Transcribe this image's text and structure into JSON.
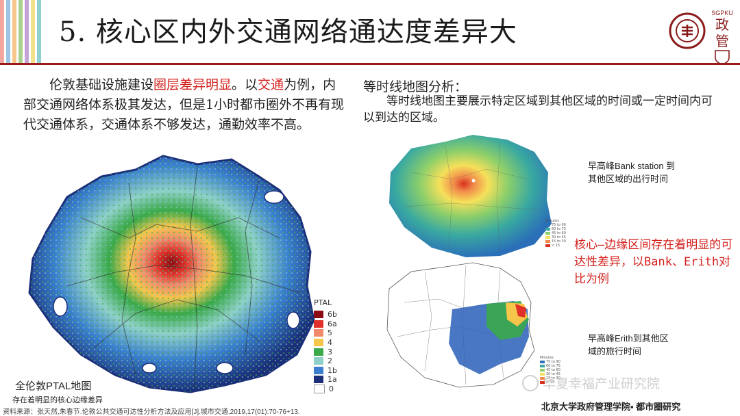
{
  "header": {
    "title": "5. 核心区内外交通网络通达度差异大",
    "stripe_colors": [
      "#f4a7a0",
      "#fff",
      "#9dc3e6",
      "#fff",
      "#f6c68c",
      "#fff",
      "#a9d18e",
      "#fff",
      "#c5a3d6",
      "#fff",
      "#f2e08a",
      "#fff",
      "#8fcfcf"
    ],
    "accent": "#9b1b1b",
    "logo_right_top": "SGPKU",
    "logo_right_char": "政管"
  },
  "left": {
    "intro_a": "伦敦基础设施建设",
    "intro_red1": "圈层差异明显",
    "intro_b": "。以",
    "intro_red2": "交通",
    "intro_c": "为例，内部交通网络体系极其发达，但是1小时都市圈外不再有现代交通体系，交通体系不够发达，通勤效率不高。",
    "map_caption": "全伦敦PTAL地图",
    "map_subcaption": "存在着明显的核心边缘差异",
    "legend": {
      "title": "PTAL",
      "items": [
        {
          "label": "6b",
          "color": "#8b0a14"
        },
        {
          "label": "6a",
          "color": "#e0302a"
        },
        {
          "label": "5",
          "color": "#f08a6a"
        },
        {
          "label": "4",
          "color": "#f6c64a"
        },
        {
          "label": "3",
          "color": "#3aa94a"
        },
        {
          "label": "2",
          "color": "#8fd0c8"
        },
        {
          "label": "1b",
          "color": "#3a7fd0"
        },
        {
          "label": "1a",
          "color": "#1a2e7a"
        },
        {
          "label": "0",
          "color": "#ffffff"
        }
      ]
    }
  },
  "right": {
    "iso_heading": "等时线地图分析：",
    "iso_description": "等时线地图主要展示特定区域到其他区域的时间或一定时间内可以到达的区域。",
    "top_caption": "早高峰Bank station 到其他区域的出行时间",
    "bottom_caption": "早高峰Erith到其他区域的旅行时间",
    "contrast_note": "核心—边缘区间存在着明显的可达性差异，以Bank、Erith对比为例",
    "mini_legend_top": {
      "title": "Minutes",
      "items": [
        "75 to 90",
        "60 to 75",
        "45 to 60",
        "30 to 45",
        "15 to 30",
        "< 15"
      ]
    },
    "mini_legend_bottom": {
      "title": "Minutes",
      "items": [
        "75 to 90",
        "60 to 75",
        "45 to 60",
        "30 to 45",
        "15 to 30",
        "< 15"
      ]
    }
  },
  "footer": {
    "source": "资料来源：张天然,朱春节.伦敦公共交通可达性分析方法及应用[J].城市交通,2019,17(01):70-76+13.",
    "watermark": "华夏幸福产业研究院",
    "institution": "北京大学政府管理学院▪ 都市圈研究"
  }
}
